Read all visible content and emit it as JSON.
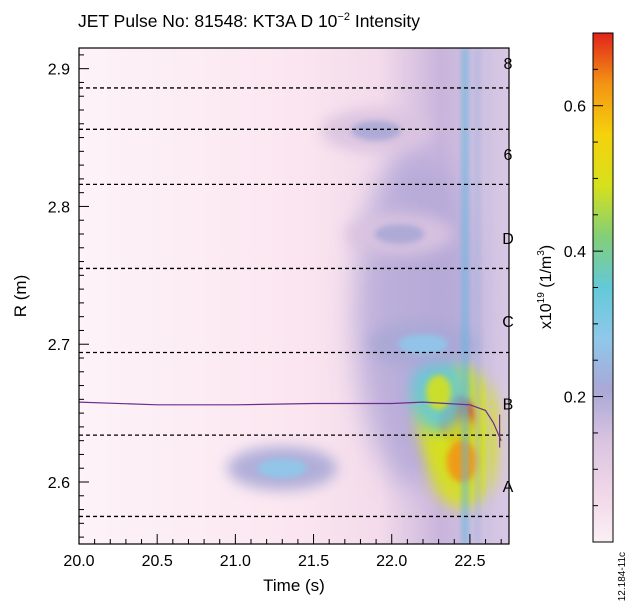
{
  "chart_data": {
    "type": "heatmap",
    "title": "JET Pulse No: 81548: KT3A D 10",
    "title_exponent": "−2",
    "title_suffix": " Intensity",
    "xlabel": "Time (s)",
    "ylabel": "R (m)",
    "xlim": [
      20.0,
      22.75
    ],
    "ylim": [
      2.555,
      2.915
    ],
    "x_ticks": [
      "20.0",
      "20.5",
      "21.0",
      "21.5",
      "22.0",
      "22.5"
    ],
    "x_tick_values": [
      20.0,
      20.5,
      21.0,
      21.5,
      22.0,
      22.5
    ],
    "y_ticks": [
      "2.6",
      "2.7",
      "2.8",
      "2.9"
    ],
    "y_tick_values": [
      2.6,
      2.7,
      2.8,
      2.9
    ],
    "colorbar": {
      "label_prefix": "x10",
      "label_exponent": "19",
      "label_unit_pre": " (1/m",
      "label_unit_exponent": "3",
      "label_unit_post": ")",
      "range": [
        0.0,
        0.7
      ],
      "ticks": [
        "0.2",
        "0.4",
        "0.6"
      ],
      "tick_values": [
        0.2,
        0.4,
        0.6
      ],
      "scale_colors": [
        "#fbeff5",
        "#f0d6e8",
        "#d9c3e0",
        "#a9a8d6",
        "#8fc8ea",
        "#63c9d8",
        "#83cf78",
        "#d6e01c",
        "#f5d20c",
        "#f39414",
        "#e2231b"
      ]
    },
    "los_lines": [
      {
        "label": "8",
        "r": 2.886,
        "label_r": 2.904
      },
      {
        "label": "",
        "r": 2.856
      },
      {
        "label": "6",
        "r": 2.816,
        "label_r": 2.838
      },
      {
        "label": "",
        "r": 2.755
      },
      {
        "label": "D",
        "r": 2.694,
        "label_r": 2.777
      },
      {
        "label": "C",
        "r": 2.634,
        "label_r": 2.717
      },
      {
        "label": "B",
        "r": 2.575,
        "label_r": 2.657
      },
      {
        "label": "A",
        "r": null,
        "label_r": 2.597
      }
    ],
    "hotspots": [
      {
        "t": 22.42,
        "r": 2.645,
        "intensity": 0.7
      },
      {
        "t": 22.45,
        "r": 2.615,
        "intensity": 0.62
      },
      {
        "t": 22.3,
        "r": 2.665,
        "intensity": 0.5
      },
      {
        "t": 21.3,
        "r": 2.61,
        "intensity": 0.25
      },
      {
        "t": 21.9,
        "r": 2.855,
        "intensity": 0.2
      },
      {
        "t": 22.05,
        "r": 2.78,
        "intensity": 0.22
      },
      {
        "t": 22.2,
        "r": 2.7,
        "intensity": 0.3
      }
    ],
    "trace": {
      "t": [
        20.0,
        20.5,
        21.0,
        21.5,
        22.0,
        22.2,
        22.35,
        22.5,
        22.6,
        22.65,
        22.7
      ],
      "r": [
        2.658,
        2.656,
        2.656,
        2.657,
        2.657,
        2.658,
        2.657,
        2.656,
        2.652,
        2.643,
        2.63
      ]
    },
    "watermark": "JG12.184-11c"
  }
}
